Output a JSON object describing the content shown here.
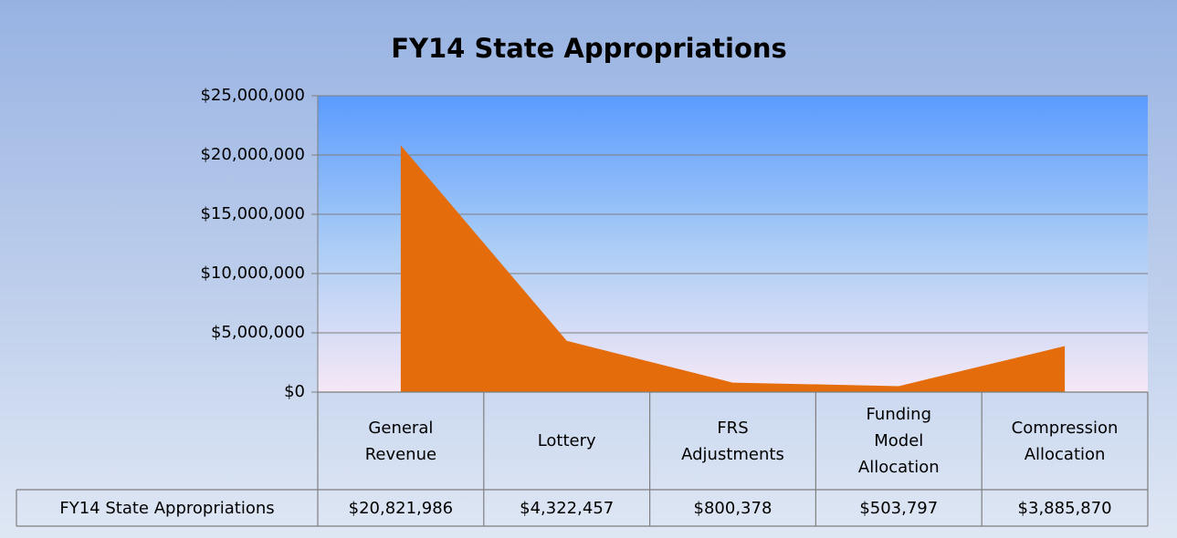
{
  "chart_data": {
    "type": "area",
    "title": "FY14 State Appropriations",
    "categories": [
      "General Revenue",
      "Lottery",
      "FRS Adjustments",
      "Funding Model Allocation",
      "Compression Allocation"
    ],
    "series": [
      {
        "name": "FY14 State Appropriations",
        "color": "#e46c0a",
        "values": [
          20821986,
          4322457,
          800378,
          503797,
          3885870
        ],
        "value_labels": [
          "$20,821,986",
          "$4,322,457",
          "$800,378",
          "$503,797",
          "$3,885,870"
        ]
      }
    ],
    "ylim": [
      0,
      25000000
    ],
    "yticks": [
      {
        "value": 0,
        "label": "$0"
      },
      {
        "value": 5000000,
        "label": "$5,000,000"
      },
      {
        "value": 10000000,
        "label": "$10,000,000"
      },
      {
        "value": 15000000,
        "label": "$15,000,000"
      },
      {
        "value": 20000000,
        "label": "$20,000,000"
      },
      {
        "value": 25000000,
        "label": "$25,000,000"
      }
    ],
    "grid": true
  }
}
